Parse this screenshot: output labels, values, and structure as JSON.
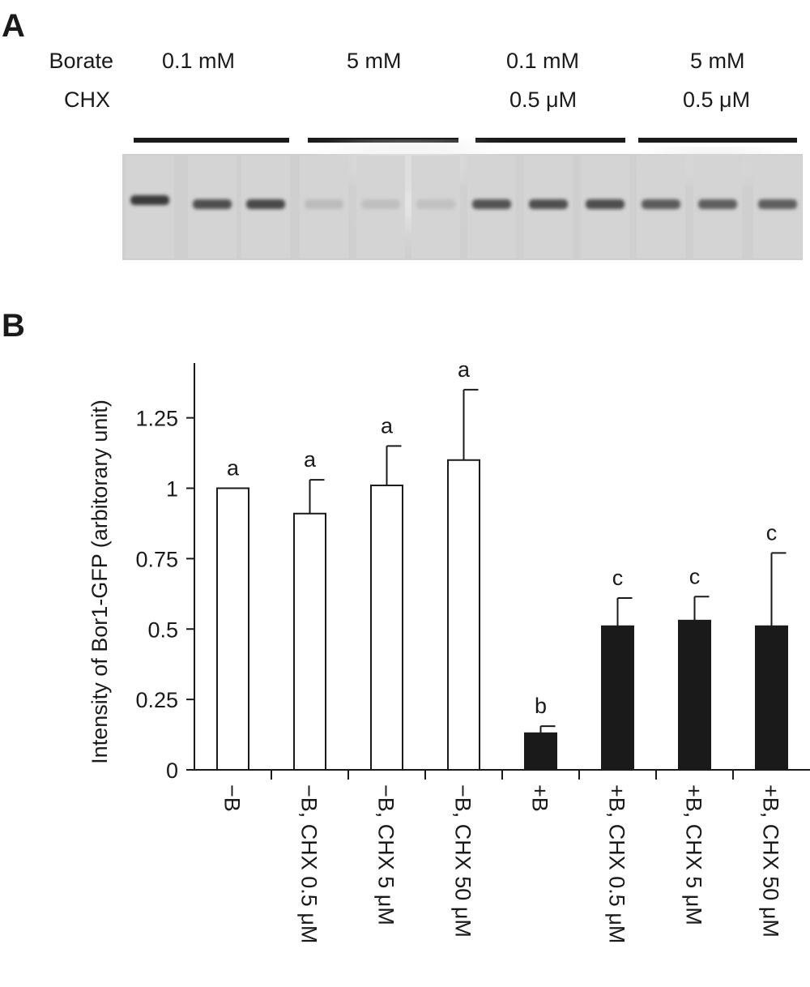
{
  "panel_a": {
    "letter": "A",
    "row_labels": {
      "borate": "Borate",
      "chx": "CHX"
    },
    "groups": [
      {
        "borate": "0.1 mM",
        "chx": ""
      },
      {
        "borate": "5 mM",
        "chx": ""
      },
      {
        "borate": "0.1 mM",
        "chx": "0.5 μM"
      },
      {
        "borate": "5 mM",
        "chx": "0.5 μM"
      }
    ],
    "blot": {
      "lanes": 12,
      "band_intensity": [
        0.95,
        0.8,
        0.85,
        0.08,
        0.06,
        0.05,
        0.78,
        0.8,
        0.82,
        0.72,
        0.7,
        0.7
      ]
    }
  },
  "panel_b": {
    "letter": "B"
  },
  "chart_data": {
    "type": "bar",
    "ylabel": "Intensity of Bor1-GFP (arbitorary unit)",
    "ylim": [
      0,
      1.45
    ],
    "yticks": [
      0,
      0.25,
      0.5,
      0.75,
      1,
      1.25
    ],
    "ytick_labels": [
      "0",
      "0.25",
      "0.5",
      "0.75",
      "1",
      "1.25"
    ],
    "categories": [
      "−B",
      "−B, CHX 0.5 μM",
      "−B, CHX 5 μM",
      "−B, CHX 50 μM",
      "+B",
      "+B, CHX 0.5 μM",
      "+B, CHX 5 μM",
      "+B, CHX 50 μM"
    ],
    "values": [
      1.0,
      0.91,
      1.01,
      1.1,
      0.13,
      0.51,
      0.53,
      0.51
    ],
    "errors": [
      0,
      0.12,
      0.14,
      0.25,
      0.025,
      0.1,
      0.085,
      0.26
    ],
    "significance": [
      "a",
      "a",
      "a",
      "a",
      "b",
      "c",
      "c",
      "c"
    ],
    "fill_colors": [
      "#ffffff",
      "#ffffff",
      "#ffffff",
      "#ffffff",
      "#1a1a1a",
      "#1a1a1a",
      "#1a1a1a",
      "#1a1a1a"
    ],
    "grid": false,
    "legend": "none"
  }
}
